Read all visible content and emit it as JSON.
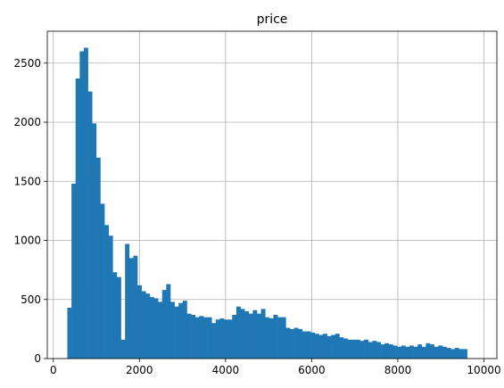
{
  "chart_data": {
    "type": "bar",
    "title": "price",
    "xlabel": "",
    "ylabel": "",
    "grid": true,
    "bar_color": "#1f77b4",
    "xlim": [
      -140,
      10300
    ],
    "ylim": [
      0,
      2770
    ],
    "x_ticks": [
      0,
      2000,
      4000,
      6000,
      8000,
      10000
    ],
    "y_ticks": [
      0,
      500,
      1000,
      1500,
      2000,
      2500
    ],
    "x_tick_labels": [
      "0",
      "2000",
      "4000",
      "6000",
      "8000",
      "10000"
    ],
    "y_tick_labels": [
      "0",
      "500",
      "1000",
      "1500",
      "2000",
      "2500"
    ],
    "bin_start": 326,
    "bin_width": 95.7,
    "values": [
      430,
      1480,
      2370,
      2600,
      2630,
      2260,
      1990,
      1700,
      1310,
      1130,
      1040,
      730,
      690,
      160,
      970,
      850,
      870,
      620,
      570,
      550,
      520,
      510,
      480,
      580,
      630,
      480,
      440,
      470,
      490,
      380,
      370,
      350,
      360,
      350,
      350,
      300,
      330,
      340,
      330,
      330,
      370,
      440,
      420,
      400,
      380,
      410,
      380,
      420,
      350,
      340,
      370,
      350,
      350,
      260,
      250,
      260,
      250,
      230,
      230,
      220,
      210,
      200,
      210,
      190,
      200,
      210,
      180,
      170,
      160,
      160,
      160,
      150,
      160,
      140,
      150,
      140,
      120,
      130,
      120,
      110,
      100,
      110,
      100,
      110,
      100,
      120,
      100,
      130,
      120,
      100,
      110,
      100,
      90,
      80,
      90,
      80,
      80
    ]
  }
}
